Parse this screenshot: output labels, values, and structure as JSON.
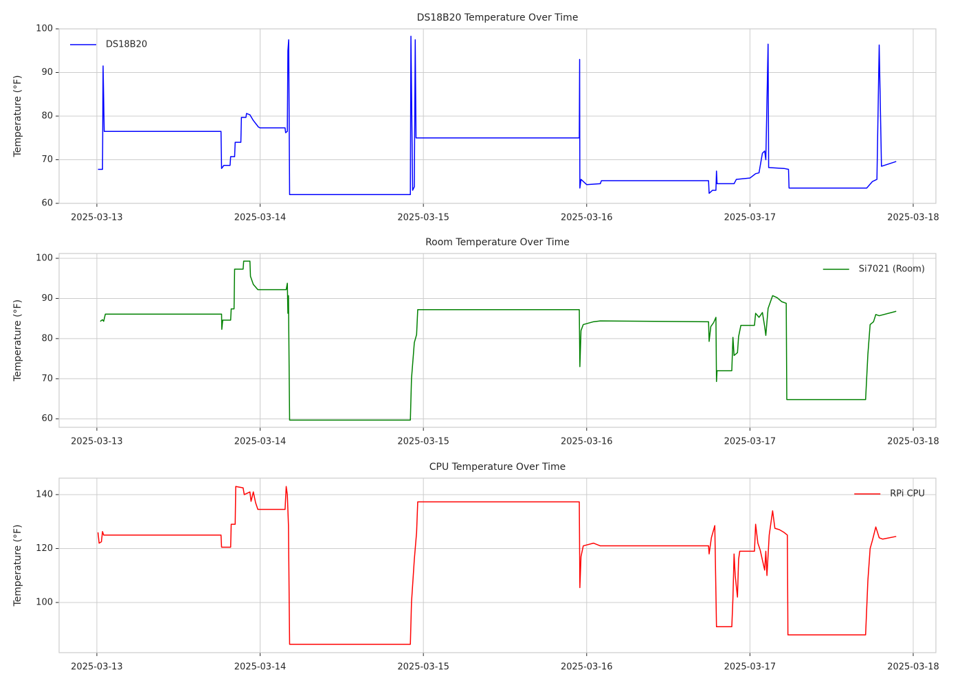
{
  "chart_data": [
    {
      "type": "line",
      "title": "DS18B20 Temperature Over Time",
      "ylabel": "Temperature (°F)",
      "x": [
        "2025-03-13T00:10",
        "2025-03-13T00:50",
        "2025-03-13T00:55",
        "2025-03-13T01:05",
        "2025-03-13T18:15",
        "2025-03-13T18:20",
        "2025-03-13T18:40",
        "2025-03-13T19:35",
        "2025-03-13T19:40",
        "2025-03-13T20:15",
        "2025-03-13T20:20",
        "2025-03-13T21:10",
        "2025-03-13T21:15",
        "2025-03-13T21:55",
        "2025-03-13T22:00",
        "2025-03-13T22:30",
        "2025-03-13T23:00",
        "2025-03-13T23:45",
        "2025-03-14T00:00",
        "2025-03-14T03:40",
        "2025-03-14T03:45",
        "2025-03-14T04:00",
        "2025-03-14T04:05",
        "2025-03-14T04:12",
        "2025-03-14T04:20",
        "2025-03-14T22:05",
        "2025-03-14T22:10",
        "2025-03-14T22:25",
        "2025-03-14T22:40",
        "2025-03-14T22:48",
        "2025-03-14T22:55",
        "2025-03-15T22:55",
        "2025-03-15T22:58",
        "2025-03-15T23:00",
        "2025-03-15T23:10",
        "2025-03-16T00:00",
        "2025-03-16T02:00",
        "2025-03-16T02:10",
        "2025-03-16T17:55",
        "2025-03-16T18:00",
        "2025-03-16T18:30",
        "2025-03-16T19:00",
        "2025-03-16T19:05",
        "2025-03-16T19:10",
        "2025-03-16T21:40",
        "2025-03-16T22:00",
        "2025-03-17T00:00",
        "2025-03-17T00:50",
        "2025-03-17T01:20",
        "2025-03-17T01:50",
        "2025-03-17T02:10",
        "2025-03-17T02:20",
        "2025-03-17T02:40",
        "2025-03-17T02:45",
        "2025-03-17T05:00",
        "2025-03-17T05:40",
        "2025-03-17T05:45",
        "2025-03-17T17:10",
        "2025-03-17T18:00",
        "2025-03-17T18:40",
        "2025-03-17T19:00",
        "2025-03-17T19:20",
        "2025-03-17T21:30"
      ],
      "series": [
        {
          "name": "DS18B20",
          "color": "#0000ff",
          "values": [
            67.8,
            67.8,
            91.5,
            76.5,
            76.5,
            68,
            68.7,
            68.7,
            70.7,
            70.7,
            74,
            74,
            79.7,
            79.7,
            80.6,
            80.3,
            79,
            77.5,
            77.3,
            77.3,
            76.2,
            76.5,
            95,
            97.5,
            62,
            62,
            98.3,
            63,
            63.8,
            97.5,
            75,
            75,
            93,
            63.5,
            65.5,
            64.3,
            64.5,
            65.2,
            65.2,
            62.3,
            63,
            63,
            67.4,
            64.5,
            64.5,
            65.5,
            65.8,
            66.8,
            67,
            71.5,
            72,
            70,
            96.5,
            68.2,
            68,
            67.8,
            63.5,
            63.5,
            65,
            65.5,
            96.3,
            68.5,
            69.6
          ]
        }
      ],
      "xlim": [
        "2025-03-12T18:27",
        "2025-03-18T03:20"
      ],
      "xticks": [
        "2025-03-13",
        "2025-03-14",
        "2025-03-15",
        "2025-03-16",
        "2025-03-17",
        "2025-03-18"
      ],
      "ylim": [
        60,
        100
      ],
      "yticks": [
        60,
        70,
        80,
        90,
        100
      ],
      "grid": true,
      "legend": "upper left"
    },
    {
      "type": "line",
      "title": "Room Temperature Over Time",
      "ylabel": "Temperature (°F)",
      "x": [
        "2025-03-13T00:30",
        "2025-03-13T00:50",
        "2025-03-13T01:00",
        "2025-03-13T01:15",
        "2025-03-13T18:20",
        "2025-03-13T18:22",
        "2025-03-13T18:30",
        "2025-03-13T19:40",
        "2025-03-13T19:45",
        "2025-03-13T20:10",
        "2025-03-13T20:15",
        "2025-03-13T21:30",
        "2025-03-13T21:35",
        "2025-03-13T22:30",
        "2025-03-13T22:35",
        "2025-03-13T23:00",
        "2025-03-13T23:40",
        "2025-03-14T03:50",
        "2025-03-14T04:00",
        "2025-03-14T04:05",
        "2025-03-14T04:10",
        "2025-03-14T04:20",
        "2025-03-14T22:05",
        "2025-03-14T22:15",
        "2025-03-14T22:40",
        "2025-03-14T23:00",
        "2025-03-14T23:10",
        "2025-03-15T22:55",
        "2025-03-15T23:00",
        "2025-03-15T23:10",
        "2025-03-15T23:30",
        "2025-03-16T01:00",
        "2025-03-16T02:00",
        "2025-03-16T17:55",
        "2025-03-16T18:00",
        "2025-03-16T18:15",
        "2025-03-16T18:40",
        "2025-03-16T19:00",
        "2025-03-16T19:05",
        "2025-03-16T19:10",
        "2025-03-16T21:20",
        "2025-03-16T21:30",
        "2025-03-16T21:40",
        "2025-03-16T22:10",
        "2025-03-16T22:20",
        "2025-03-16T22:40",
        "2025-03-17T00:40",
        "2025-03-17T00:50",
        "2025-03-17T01:20",
        "2025-03-17T01:50",
        "2025-03-17T02:10",
        "2025-03-17T02:20",
        "2025-03-17T02:40",
        "2025-03-17T03:20",
        "2025-03-17T04:00",
        "2025-03-17T04:40",
        "2025-03-17T05:20",
        "2025-03-17T05:25",
        "2025-03-17T17:00",
        "2025-03-17T17:20",
        "2025-03-17T17:40",
        "2025-03-17T18:10",
        "2025-03-17T18:30",
        "2025-03-17T19:00",
        "2025-03-17T21:30"
      ],
      "series": [
        {
          "name": "Si7021 (Room)",
          "color": "#008000",
          "values": [
            84.3,
            84.7,
            84.3,
            86.1,
            86.1,
            82.3,
            84.6,
            84.6,
            87.4,
            87.4,
            97.3,
            97.3,
            99.3,
            99.3,
            95.5,
            93.5,
            92.2,
            92.2,
            93.8,
            86.3,
            90.7,
            59.7,
            59.7,
            70,
            79,
            81,
            87.2,
            87.2,
            73,
            82,
            83.5,
            84.2,
            84.4,
            84.2,
            79.3,
            83,
            84,
            85.3,
            69.3,
            72,
            72,
            80.3,
            75.8,
            76.5,
            80.5,
            83.3,
            83.3,
            86.3,
            85.3,
            86.5,
            83,
            80.8,
            87.5,
            90.7,
            90.2,
            89.2,
            88.8,
            64.8,
            64.8,
            76,
            83.5,
            84.2,
            86,
            85.7,
            86.8
          ]
        }
      ],
      "xlim": [
        "2025-03-12T18:27",
        "2025-03-18T03:20"
      ],
      "xticks": [
        "2025-03-13",
        "2025-03-14",
        "2025-03-15",
        "2025-03-16",
        "2025-03-17",
        "2025-03-18"
      ],
      "ylim": [
        57.9,
        101.2
      ],
      "yticks": [
        60,
        70,
        80,
        90,
        100
      ],
      "grid": true,
      "legend": "upper right"
    },
    {
      "type": "line",
      "title": "CPU Temperature Over Time",
      "ylabel": "Temperature (°F)",
      "x": [
        "2025-03-13T00:10",
        "2025-03-13T00:20",
        "2025-03-13T00:40",
        "2025-03-13T00:50",
        "2025-03-13T01:00",
        "2025-03-13T18:15",
        "2025-03-13T18:20",
        "2025-03-13T19:40",
        "2025-03-13T19:45",
        "2025-03-13T20:20",
        "2025-03-13T20:25",
        "2025-03-13T21:30",
        "2025-03-13T21:40",
        "2025-03-13T22:30",
        "2025-03-13T22:40",
        "2025-03-13T23:00",
        "2025-03-13T23:20",
        "2025-03-13T23:40",
        "2025-03-14T03:40",
        "2025-03-14T03:50",
        "2025-03-14T04:00",
        "2025-03-14T04:10",
        "2025-03-14T04:20",
        "2025-03-14T22:05",
        "2025-03-14T22:15",
        "2025-03-14T22:40",
        "2025-03-14T23:00",
        "2025-03-14T23:10",
        "2025-03-15T22:55",
        "2025-03-15T23:00",
        "2025-03-15T23:10",
        "2025-03-15T23:30",
        "2025-03-16T01:00",
        "2025-03-16T02:00",
        "2025-03-16T17:55",
        "2025-03-16T18:00",
        "2025-03-16T18:20",
        "2025-03-16T18:50",
        "2025-03-16T19:05",
        "2025-03-16T21:20",
        "2025-03-16T21:30",
        "2025-03-16T21:40",
        "2025-03-16T21:50",
        "2025-03-16T22:10",
        "2025-03-16T22:20",
        "2025-03-16T22:30",
        "2025-03-17T00:40",
        "2025-03-17T00:50",
        "2025-03-17T01:10",
        "2025-03-17T01:30",
        "2025-03-17T02:10",
        "2025-03-17T02:20",
        "2025-03-17T02:30",
        "2025-03-17T02:50",
        "2025-03-17T03:20",
        "2025-03-17T03:40",
        "2025-03-17T04:20",
        "2025-03-17T05:00",
        "2025-03-17T05:30",
        "2025-03-17T05:35",
        "2025-03-17T17:00",
        "2025-03-17T17:20",
        "2025-03-17T17:40",
        "2025-03-17T18:00",
        "2025-03-17T18:30",
        "2025-03-17T19:00",
        "2025-03-17T19:30",
        "2025-03-17T21:30"
      ],
      "series": [
        {
          "name": "RPi CPU",
          "color": "#ff0000",
          "values": [
            126,
            122,
            122.5,
            126.3,
            125,
            125,
            120.5,
            120.5,
            129,
            129,
            143,
            142.5,
            140,
            141,
            137.5,
            141,
            137,
            134.5,
            134.5,
            143,
            140,
            128.5,
            84.5,
            84.5,
            100,
            116,
            126,
            137.3,
            137.3,
            105.5,
            117,
            121,
            122,
            121,
            121,
            118,
            124,
            128.5,
            91,
            91,
            101.5,
            118,
            110,
            102,
            116,
            119,
            119,
            129,
            122,
            119.5,
            112,
            119,
            110,
            125,
            134,
            127.5,
            127,
            126,
            125,
            88,
            88,
            108,
            120,
            123,
            128,
            124,
            123.5,
            124.5
          ]
        }
      ],
      "xlim": [
        "2025-03-12T18:27",
        "2025-03-18T03:20"
      ],
      "xticks": [
        "2025-03-13",
        "2025-03-14",
        "2025-03-15",
        "2025-03-16",
        "2025-03-17",
        "2025-03-18"
      ],
      "ylim": [
        81.4,
        146.1
      ],
      "yticks": [
        100,
        120,
        140
      ],
      "grid": true,
      "legend": "upper right"
    }
  ]
}
